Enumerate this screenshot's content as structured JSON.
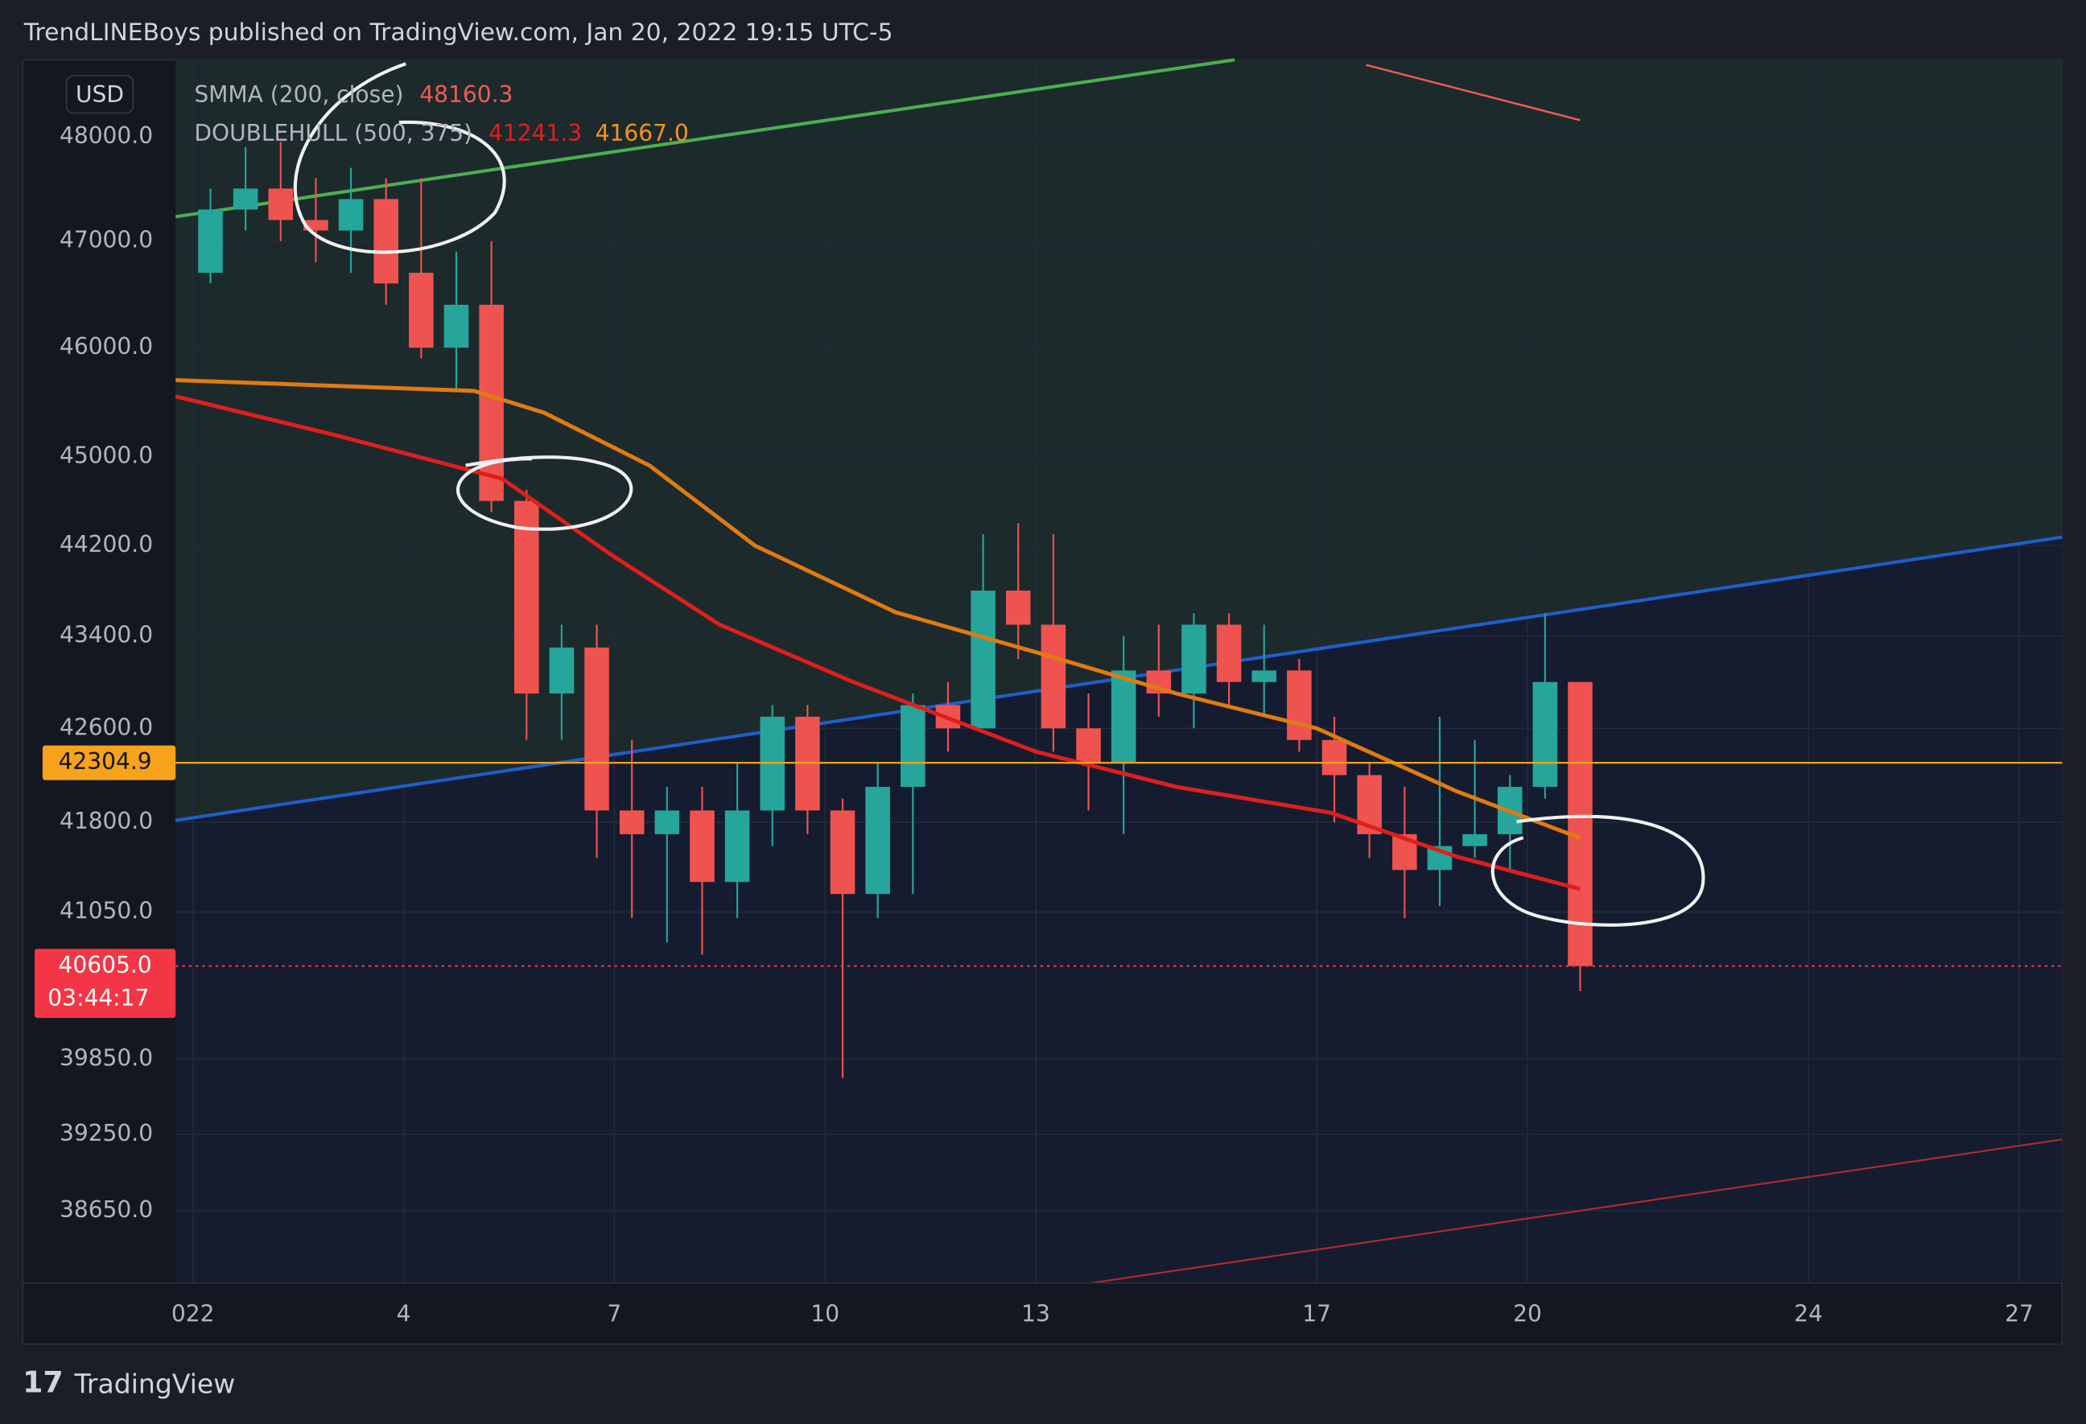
{
  "header": {
    "text": "TrendLINEBoys published on TradingView.com, Jan 20, 2022 19:15 UTC-5"
  },
  "footer": {
    "brand": "TradingView"
  },
  "chart_data": {
    "type": "candlestick",
    "currency": "USD",
    "log_scale": true,
    "grid": true,
    "x": [
      1,
      1.5,
      2,
      2.5,
      3,
      3.5,
      4,
      4.5,
      5,
      5.5,
      6,
      6.5,
      7,
      7.5,
      8,
      8.5,
      9,
      9.5,
      10,
      10.5,
      11,
      11.5,
      12,
      12.5,
      13,
      13.5,
      14,
      14.5,
      15,
      15.5,
      16,
      16.5,
      17,
      17.5,
      18,
      18.5,
      19,
      19.5,
      20,
      20.5
    ],
    "open": [
      46700,
      47300,
      47500,
      47200,
      47100,
      47400,
      46700,
      46000,
      46400,
      44600,
      42900,
      43300,
      41900,
      41700,
      41900,
      41300,
      41900,
      42700,
      41900,
      41200,
      42100,
      42800,
      42600,
      43800,
      43500,
      42600,
      42300,
      43100,
      42900,
      43500,
      43000,
      43100,
      42500,
      42200,
      41700,
      41400,
      41600,
      41700,
      42100,
      43000
    ],
    "high": [
      47500,
      47900,
      47950,
      47600,
      47700,
      47600,
      47600,
      46900,
      47000,
      44700,
      43500,
      43500,
      42500,
      42100,
      42100,
      42300,
      42800,
      42800,
      42000,
      42300,
      42900,
      43000,
      44300,
      44400,
      44300,
      42900,
      43400,
      43500,
      43600,
      43600,
      43500,
      43200,
      42700,
      42300,
      42100,
      42700,
      42500,
      42200,
      43600,
      43000
    ],
    "low": [
      46600,
      47100,
      47000,
      46800,
      46700,
      46400,
      45900,
      45600,
      44500,
      42500,
      42500,
      41500,
      41000,
      40800,
      40700,
      41000,
      41600,
      41700,
      39700,
      41000,
      41200,
      42400,
      42600,
      43200,
      42400,
      41900,
      41700,
      42700,
      42600,
      42800,
      42700,
      42400,
      41800,
      41500,
      41000,
      41100,
      41500,
      41400,
      42000,
      40400
    ],
    "close": [
      47300,
      47500,
      47200,
      47100,
      47400,
      46600,
      46000,
      46400,
      44600,
      42900,
      43300,
      41900,
      41700,
      41900,
      41300,
      41900,
      42700,
      41900,
      41200,
      42100,
      42800,
      42600,
      43800,
      43500,
      42600,
      42300,
      43100,
      42900,
      43500,
      43000,
      43100,
      42500,
      42200,
      41700,
      41400,
      41600,
      41700,
      42100,
      43000,
      40605
    ],
    "up_color": "#26a69a",
    "down_color": "#ef5350",
    "xlim": [
      0.754,
      27.61
    ],
    "xticks": [
      {
        "value": 1,
        "label": "022"
      },
      4,
      7,
      10,
      13,
      17,
      20,
      24,
      27
    ],
    "ylim": [
      38090,
      48750
    ],
    "yticks": [
      {
        "value": 48000,
        "label": "48000.0"
      },
      {
        "value": 47000,
        "label": "47000.0"
      },
      {
        "value": 46000,
        "label": "46000.0"
      },
      {
        "value": 45000,
        "label": "45000.0"
      },
      {
        "value": 44200,
        "label": "44200.0"
      },
      {
        "value": 43400,
        "label": "43400.0"
      },
      {
        "value": 42600,
        "label": "42600.0"
      },
      {
        "value": 41800,
        "label": "41800.0"
      },
      {
        "value": 41050,
        "label": "41050.0"
      },
      {
        "value": 39850,
        "label": "39850.0"
      },
      {
        "value": 39250,
        "label": "39250.0"
      },
      {
        "value": 38650,
        "label": "38650.0"
      }
    ],
    "indicators": [
      {
        "name": "SMMA (200, close)",
        "lines": [
          {
            "color": "#f05a55",
            "x": [
              17.7,
              20.75
            ],
            "values": [
              48700,
              48160.3
            ],
            "value_labels": [
              null,
              "48160.3"
            ]
          }
        ]
      },
      {
        "name": "DOUBLEHULL (500, 375)",
        "lines": [
          {
            "color": "#e01e1e",
            "x": [
              0.754,
              3,
              5.4,
              7,
              8.5,
              10.4,
              13,
              15,
              17.2,
              19,
              20.75
            ],
            "values": [
              45550,
              45200,
              44800,
              44100,
              43500,
              43000,
              42400,
              42100,
              41880,
              41510,
              41241.3
            ],
            "value_labels": [
              null,
              null,
              null,
              null,
              null,
              null,
              null,
              null,
              null,
              null,
              "41241.3"
            ]
          },
          {
            "color": "#e07b12",
            "x": [
              0.754,
              5,
              6,
              7.5,
              9,
              11,
              13,
              15,
              17,
              19,
              20.75
            ],
            "values": [
              45700,
              45600,
              45400,
              44920,
              44200,
              43610,
              43260,
              42900,
              42600,
              42060,
              41667.0
            ],
            "value_labels": [
              null,
              null,
              null,
              null,
              null,
              null,
              null,
              null,
              null,
              null,
              "41667.0"
            ]
          }
        ]
      }
    ],
    "price_lines": [
      {
        "value": 42304.9,
        "label": "42304.9",
        "color": "#f7a21b"
      },
      {
        "value": 40605.0,
        "label": "40605.0",
        "color": "#f23645",
        "countdown": "03:44:17"
      }
    ]
  }
}
